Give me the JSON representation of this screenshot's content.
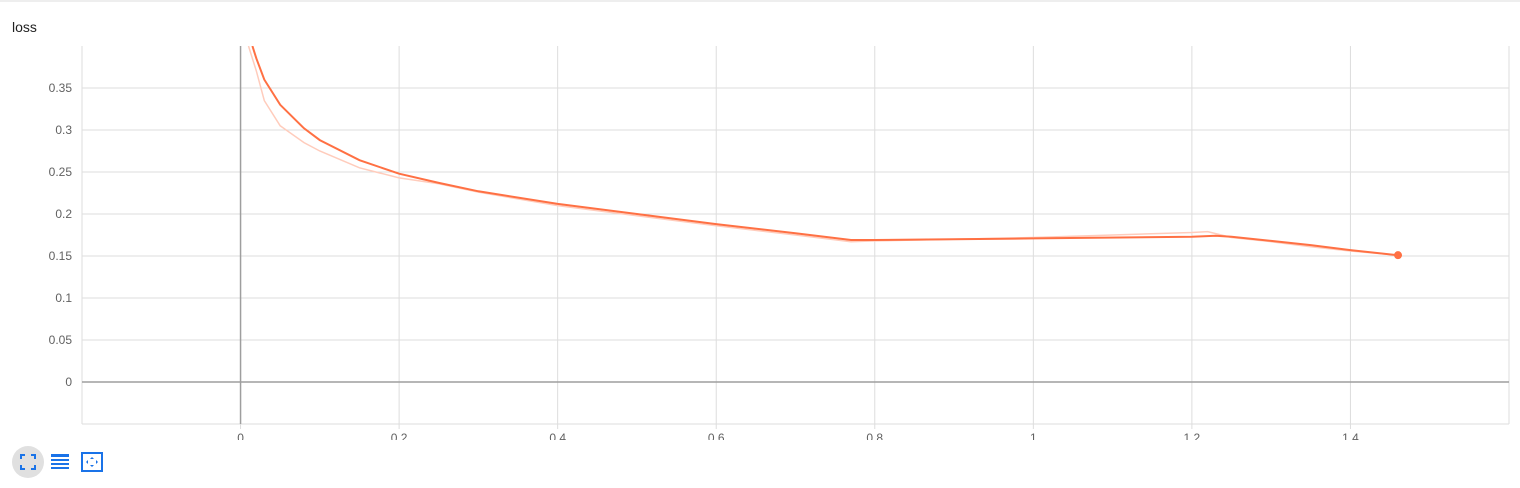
{
  "card": {
    "title": "loss"
  },
  "toolbar": {
    "buttons": [
      {
        "icon": "fullscreen-icon",
        "active": true
      },
      {
        "icon": "data-table-icon",
        "active": false
      },
      {
        "icon": "fit-domain-icon",
        "active": false
      }
    ]
  },
  "colors": {
    "smoothed": "#ff7043",
    "raw": "#ffccbc",
    "grid": "#dddddd",
    "axis": "#9e9e9e",
    "icon": "#1a73e8"
  },
  "chart_data": {
    "type": "line",
    "title": "loss",
    "xlim": [
      -0.2,
      1.6
    ],
    "ylim": [
      -0.05,
      0.4
    ],
    "x_ticks": [
      "0",
      "0.2",
      "0.4",
      "0.6",
      "0.8",
      "1",
      "1.2",
      "1.4"
    ],
    "y_ticks": [
      "0",
      "0.05",
      "0.1",
      "0.15",
      "0.2",
      "0.25",
      "0.3",
      "0.35"
    ],
    "grid": true,
    "series": [
      {
        "role": "raw",
        "x": [
          0.01,
          0.02,
          0.03,
          0.05,
          0.08,
          0.1,
          0.15,
          0.2,
          0.25,
          0.3,
          0.4,
          0.5,
          0.6,
          0.7,
          0.77,
          0.8,
          1.0,
          1.2,
          1.22,
          1.25,
          1.3,
          1.35,
          1.4,
          1.46
        ],
        "y": [
          0.4,
          0.37,
          0.335,
          0.305,
          0.285,
          0.275,
          0.255,
          0.243,
          0.236,
          0.226,
          0.21,
          0.198,
          0.186,
          0.175,
          0.167,
          0.168,
          0.172,
          0.178,
          0.179,
          0.172,
          0.167,
          0.161,
          0.156,
          0.151
        ]
      },
      {
        "role": "smoothed",
        "x": [
          0.015,
          0.02,
          0.03,
          0.05,
          0.08,
          0.1,
          0.15,
          0.2,
          0.25,
          0.3,
          0.4,
          0.5,
          0.6,
          0.7,
          0.77,
          0.8,
          1.0,
          1.2,
          1.23,
          1.25,
          1.3,
          1.35,
          1.4,
          1.46
        ],
        "y": [
          0.4,
          0.385,
          0.36,
          0.33,
          0.302,
          0.288,
          0.264,
          0.248,
          0.237,
          0.227,
          0.212,
          0.2,
          0.188,
          0.177,
          0.169,
          0.169,
          0.171,
          0.173,
          0.174,
          0.173,
          0.168,
          0.163,
          0.157,
          0.151
        ]
      }
    ]
  }
}
